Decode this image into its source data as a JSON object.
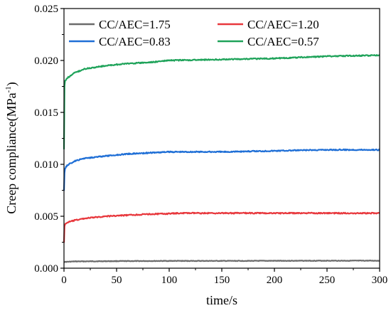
{
  "chart_data": {
    "type": "line",
    "title": "",
    "xlabel": "time/s",
    "ylabel": "Creep compliance(MPa",
    "ylabel_sup": "-1",
    "ylabel_close": ")",
    "xlim": [
      0,
      300
    ],
    "ylim": [
      0,
      0.025
    ],
    "x_ticks": [
      0,
      50,
      100,
      150,
      200,
      250,
      300
    ],
    "x_tick_labels": [
      "0",
      "50",
      "100",
      "150",
      "200",
      "250",
      "300"
    ],
    "y_ticks": [
      0,
      0.005,
      0.01,
      0.015,
      0.02,
      0.025
    ],
    "y_tick_labels": [
      "0.000",
      "0.005",
      "0.010",
      "0.015",
      "0.020",
      "0.025"
    ],
    "grid": false,
    "legend_position": "top-left",
    "series": [
      {
        "name": "CC/AEC=1.75",
        "color": "#6b6b6b",
        "points": [
          [
            0,
            0.0006
          ],
          [
            10,
            0.00065
          ],
          [
            50,
            0.00068
          ],
          [
            100,
            0.0007
          ],
          [
            150,
            0.0007
          ],
          [
            200,
            0.00071
          ],
          [
            250,
            0.00072
          ],
          [
            300,
            0.00072
          ]
        ]
      },
      {
        "name": "CC/AEC=1.20",
        "color": "#e8383d",
        "points": [
          [
            0,
            0.0025
          ],
          [
            0.5,
            0.004
          ],
          [
            1,
            0.0042
          ],
          [
            3,
            0.0044
          ],
          [
            10,
            0.0046
          ],
          [
            20,
            0.0048
          ],
          [
            40,
            0.005
          ],
          [
            60,
            0.0051
          ],
          [
            80,
            0.0052
          ],
          [
            100,
            0.00525
          ],
          [
            110,
            0.0053
          ],
          [
            150,
            0.0053
          ],
          [
            200,
            0.0053
          ],
          [
            250,
            0.0053
          ],
          [
            300,
            0.0053
          ]
        ]
      },
      {
        "name": "CC/AEC=0.83",
        "color": "#1f6fd6",
        "points": [
          [
            0,
            0.0075
          ],
          [
            0.5,
            0.0092
          ],
          [
            1,
            0.0096
          ],
          [
            3,
            0.0099
          ],
          [
            10,
            0.0103
          ],
          [
            20,
            0.0106
          ],
          [
            40,
            0.0108
          ],
          [
            60,
            0.011
          ],
          [
            80,
            0.0111
          ],
          [
            100,
            0.0112
          ],
          [
            150,
            0.0112
          ],
          [
            200,
            0.0113
          ],
          [
            250,
            0.0114
          ],
          [
            300,
            0.0114
          ]
        ]
      },
      {
        "name": "CC/AEC=0.57",
        "color": "#1fa35a",
        "points": [
          [
            0,
            0.0115
          ],
          [
            0.5,
            0.0175
          ],
          [
            1,
            0.018
          ],
          [
            3,
            0.0183
          ],
          [
            10,
            0.0188
          ],
          [
            20,
            0.0192
          ],
          [
            40,
            0.0195
          ],
          [
            60,
            0.0197
          ],
          [
            80,
            0.0198
          ],
          [
            100,
            0.02
          ],
          [
            150,
            0.0201
          ],
          [
            200,
            0.0202
          ],
          [
            250,
            0.0204
          ],
          [
            300,
            0.0205
          ]
        ]
      }
    ]
  }
}
